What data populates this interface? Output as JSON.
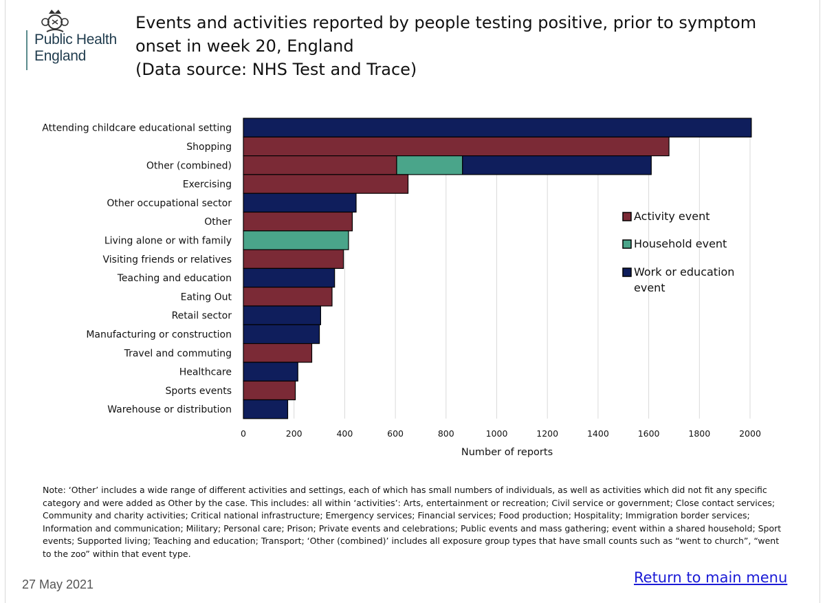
{
  "logo": {
    "org_name_line1": "Public Health",
    "org_name_line2": "England"
  },
  "title": {
    "line1": "Events and activities reported by people testing positive, prior to symptom",
    "line2": "onset in week 20, England",
    "line3": "(Data source: NHS Test and Trace)"
  },
  "colors": {
    "activity": "#7b2a36",
    "household": "#4aa58a",
    "work": "#0f1e5c",
    "gridline": "#d9d9d9"
  },
  "chart_data": {
    "type": "bar",
    "orientation": "horizontal",
    "stacked": true,
    "categories": [
      "Attending childcare educational setting",
      "Shopping",
      "Other (combined)",
      "Exercising",
      "Other occupational sector",
      "Other",
      "Living alone or with family",
      "Visiting friends or relatives",
      "Teaching and education",
      "Eating Out",
      "Retail sector",
      "Manufacturing or construction",
      "Travel and commuting",
      "Healthcare",
      "Sports events",
      "Warehouse or distribution"
    ],
    "series": [
      {
        "name": "Activity event",
        "color": "#7b2a36",
        "values": [
          0,
          1680,
          605,
          650,
          0,
          430,
          0,
          395,
          0,
          350,
          0,
          0,
          270,
          0,
          205,
          0
        ]
      },
      {
        "name": "Household event",
        "color": "#4aa58a",
        "values": [
          0,
          0,
          260,
          0,
          0,
          0,
          415,
          0,
          0,
          0,
          0,
          0,
          0,
          0,
          0,
          0
        ]
      },
      {
        "name": "Work or education event",
        "color": "#0f1e5c",
        "values": [
          2005,
          0,
          745,
          0,
          445,
          0,
          0,
          0,
          360,
          0,
          305,
          300,
          0,
          215,
          0,
          175
        ]
      }
    ],
    "xlabel": "Number of reports",
    "ylabel": "",
    "xlim": [
      0,
      2000
    ],
    "xticks": [
      "0",
      "200",
      "400",
      "600",
      "800",
      "1000",
      "1200",
      "1400",
      "1600",
      "1800",
      "2000"
    ],
    "grid": true,
    "legend": {
      "placement": "right",
      "items": [
        "Activity event",
        "Household event",
        "Work or education",
        "event"
      ]
    }
  },
  "note": "Note: ‘Other’ includes a wide range of different activities and settings, each of which has small numbers of individuals, as well as activities which did not fit any specific category and were added as Other by the case. This includes: all within ‘activities’: Arts, entertainment or recreation; Civil service or government; Close contact services; Community and charity activities; Critical national infrastructure; Emergency services; Financial services; Food production; Hospitality; Immigration border services; Information and communication; Military; Personal care; Prison; Private events and celebrations; Public events and mass gathering; event within a shared household; Sport events; Supported living; Teaching and education; Transport; ‘Other (combined)’ includes all exposure group types that have small counts such as “went to church”, “went to the zoo” within that event type.",
  "footer": {
    "date": "27 May 2021",
    "return_link": "Return to main menu"
  }
}
